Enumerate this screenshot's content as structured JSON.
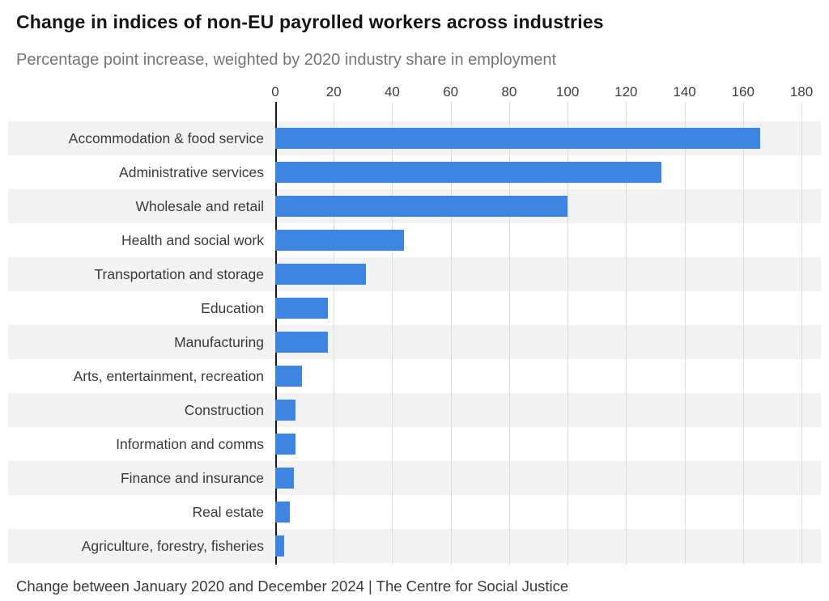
{
  "header": {
    "title": "Change in indices of non-EU payrolled workers across industries",
    "subtitle": "Percentage point increase, weighted by 2020 industry share in employment"
  },
  "footer": {
    "text": "Change between January 2020 and December 2024  | The Centre for Social Justice"
  },
  "chart_data": {
    "type": "bar",
    "orientation": "horizontal",
    "title": "Change in indices of non-EU payrolled workers across industries",
    "subtitle": "Percentage point increase, weighted by 2020 industry share in employment",
    "xlabel": "",
    "ylabel": "",
    "xlim": [
      0,
      180
    ],
    "xticks": [
      0,
      20,
      40,
      60,
      80,
      100,
      120,
      140,
      160,
      180
    ],
    "grid": true,
    "legend": "none",
    "bar_color": "#3d85e0",
    "stripe_color": "#f2f2f2",
    "categories": [
      "Accommodation & food service",
      "Administrative services",
      "Wholesale and retail",
      "Health and social work",
      "Transportation and storage",
      "Education",
      "Manufacturing",
      "Arts, entertainment, recreation",
      "Construction",
      "Information and comms",
      "Finance and insurance",
      "Real estate",
      "Agriculture, forestry, fisheries"
    ],
    "values": [
      166,
      132,
      100,
      44,
      31,
      18,
      18,
      9,
      7,
      7,
      6.5,
      5,
      3
    ],
    "source_note": "Change between January 2020 and December 2024  | The Centre for Social Justice"
  }
}
